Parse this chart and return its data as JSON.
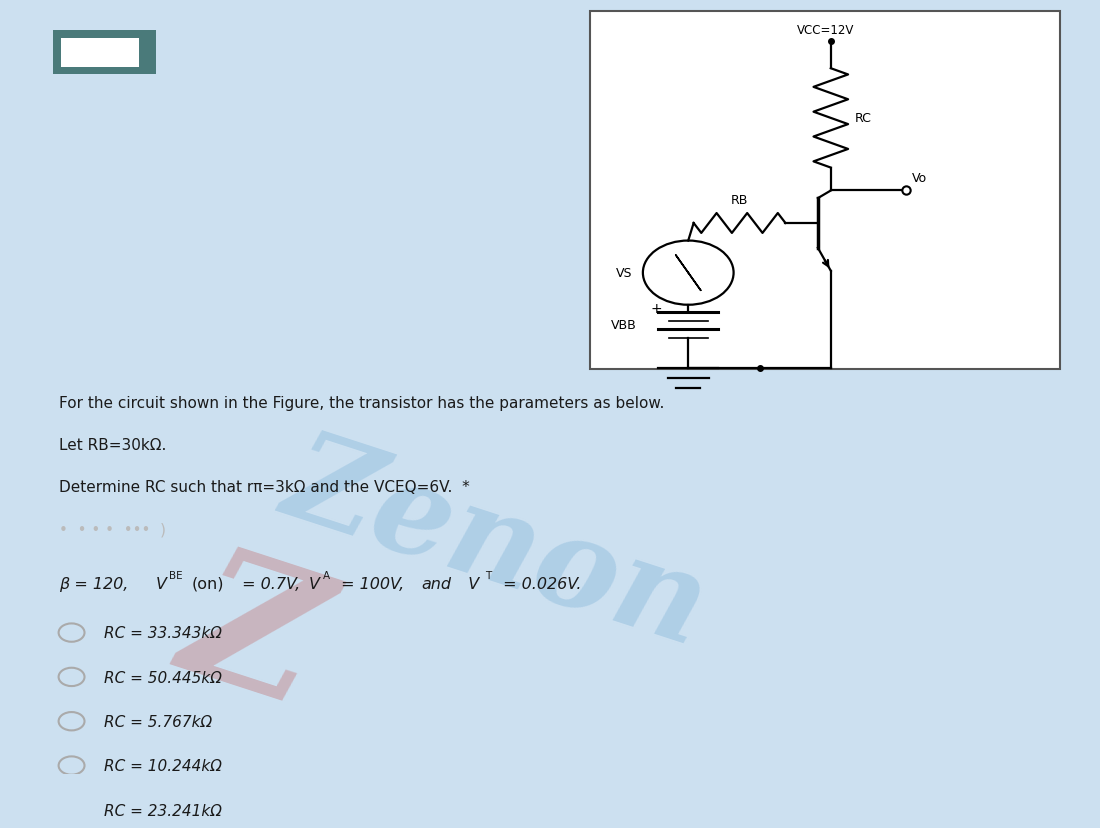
{
  "bg_color": "#cce0f0",
  "circuit_box_color": "#ffffff",
  "text_color": "#1a1a1a",
  "question_lines": [
    "For the circuit shown in the Figure, the transistor has the parameters as below.",
    "Let RB=30kΩ.",
    "Determine RC such that rπ=3kΩ and the VCEQ=6V.  *"
  ],
  "options": [
    "RC = 33.343kΩ",
    "RC = 50.445kΩ",
    "RC = 5.767kΩ",
    "RC = 10.244kΩ",
    "RC = 23.241kΩ"
  ],
  "watermark_text": "Zenon",
  "watermark_color_blue": "#7fb3d8",
  "watermark_color_red": "#c0504d",
  "option_circle_color": "#aaaaaa",
  "lw": 1.6
}
